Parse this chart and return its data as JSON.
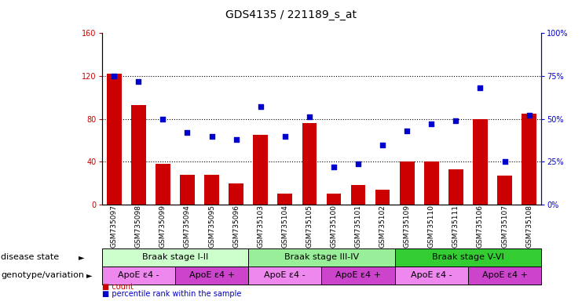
{
  "title": "GDS4135 / 221189_s_at",
  "samples": [
    "GSM735097",
    "GSM735098",
    "GSM735099",
    "GSM735094",
    "GSM735095",
    "GSM735096",
    "GSM735103",
    "GSM735104",
    "GSM735105",
    "GSM735100",
    "GSM735101",
    "GSM735102",
    "GSM735109",
    "GSM735110",
    "GSM735111",
    "GSM735106",
    "GSM735107",
    "GSM735108"
  ],
  "counts": [
    122,
    93,
    38,
    28,
    28,
    20,
    65,
    10,
    76,
    10,
    18,
    14,
    40,
    40,
    33,
    80,
    27,
    85
  ],
  "percentiles": [
    75,
    72,
    50,
    42,
    40,
    38,
    57,
    40,
    51,
    22,
    24,
    35,
    43,
    47,
    49,
    68,
    25,
    52
  ],
  "ylim_left": [
    0,
    160
  ],
  "ylim_right": [
    0,
    100
  ],
  "yticks_left": [
    0,
    40,
    80,
    120,
    160
  ],
  "yticks_right": [
    0,
    25,
    50,
    75,
    100
  ],
  "bar_color": "#cc0000",
  "dot_color": "#0000cc",
  "disease_state_groups": [
    {
      "label": "Braak stage I-II",
      "start": 0,
      "end": 6,
      "color": "#ccffcc"
    },
    {
      "label": "Braak stage III-IV",
      "start": 6,
      "end": 12,
      "color": "#99ee99"
    },
    {
      "label": "Braak stage V-VI",
      "start": 12,
      "end": 18,
      "color": "#33cc33"
    }
  ],
  "genotype_groups": [
    {
      "label": "ApoE ε4 -",
      "start": 0,
      "end": 3,
      "color": "#ee88ee"
    },
    {
      "label": "ApoE ε4 +",
      "start": 3,
      "end": 6,
      "color": "#cc44cc"
    },
    {
      "label": "ApoE ε4 -",
      "start": 6,
      "end": 9,
      "color": "#ee88ee"
    },
    {
      "label": "ApoE ε4 +",
      "start": 9,
      "end": 12,
      "color": "#cc44cc"
    },
    {
      "label": "ApoE ε4 -",
      "start": 12,
      "end": 15,
      "color": "#ee88ee"
    },
    {
      "label": "ApoE ε4 +",
      "start": 15,
      "end": 18,
      "color": "#cc44cc"
    }
  ],
  "bg_color": "#ffffff",
  "tick_label_fontsize": 7,
  "title_fontsize": 10,
  "row_label_fontsize": 8,
  "bar_label_fontsize": 7,
  "legend_fontsize": 7
}
